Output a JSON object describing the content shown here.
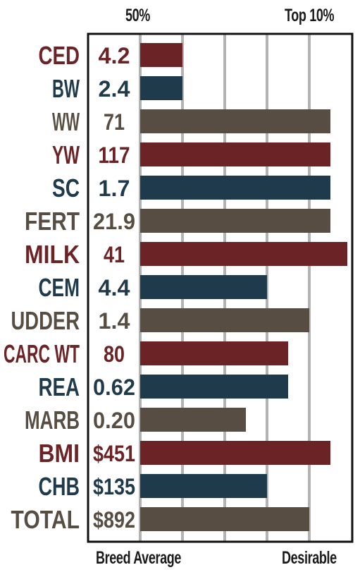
{
  "chart_data": {
    "type": "bar",
    "orientation": "horizontal",
    "top_labels": [
      "50%",
      "Top 10%"
    ],
    "bottom_labels": [
      "Breed Average",
      "Desirable"
    ],
    "colors": {
      "maroon": "#6b2326",
      "navy": "#1f3a4b",
      "taupe": "#574d42",
      "grid": "#b3b3b3",
      "frame": "#111111"
    },
    "xlim": [
      0,
      10
    ],
    "rows": [
      {
        "trait": "CED",
        "value_label": "4.2",
        "bar": 2.0,
        "color": "maroon"
      },
      {
        "trait": "BW",
        "value_label": "2.4",
        "bar": 2.0,
        "color": "navy"
      },
      {
        "trait": "WW",
        "value_label": "71",
        "bar": 9.0,
        "color": "taupe"
      },
      {
        "trait": "YW",
        "value_label": "117",
        "bar": 9.0,
        "color": "maroon"
      },
      {
        "trait": "SC",
        "value_label": "1.7",
        "bar": 9.0,
        "color": "navy"
      },
      {
        "trait": "FERT",
        "value_label": "21.9",
        "bar": 9.0,
        "color": "taupe"
      },
      {
        "trait": "MILK",
        "value_label": "41",
        "bar": 9.8,
        "color": "maroon"
      },
      {
        "trait": "CEM",
        "value_label": "4.4",
        "bar": 6.0,
        "color": "navy"
      },
      {
        "trait": "UDDER",
        "value_label": "1.4",
        "bar": 8.0,
        "color": "taupe"
      },
      {
        "trait": "CARC WT",
        "value_label": "80",
        "bar": 7.0,
        "color": "maroon"
      },
      {
        "trait": "REA",
        "value_label": "0.62",
        "bar": 7.0,
        "color": "navy"
      },
      {
        "trait": "MARB",
        "value_label": "0.20",
        "bar": 5.0,
        "color": "taupe"
      },
      {
        "trait": "BMI",
        "value_label": "$451",
        "bar": 9.0,
        "color": "maroon"
      },
      {
        "trait": "CHB",
        "value_label": "$135",
        "bar": 6.0,
        "color": "navy"
      },
      {
        "trait": "TOTAL",
        "value_label": "$892",
        "bar": 8.0,
        "color": "taupe"
      }
    ]
  }
}
